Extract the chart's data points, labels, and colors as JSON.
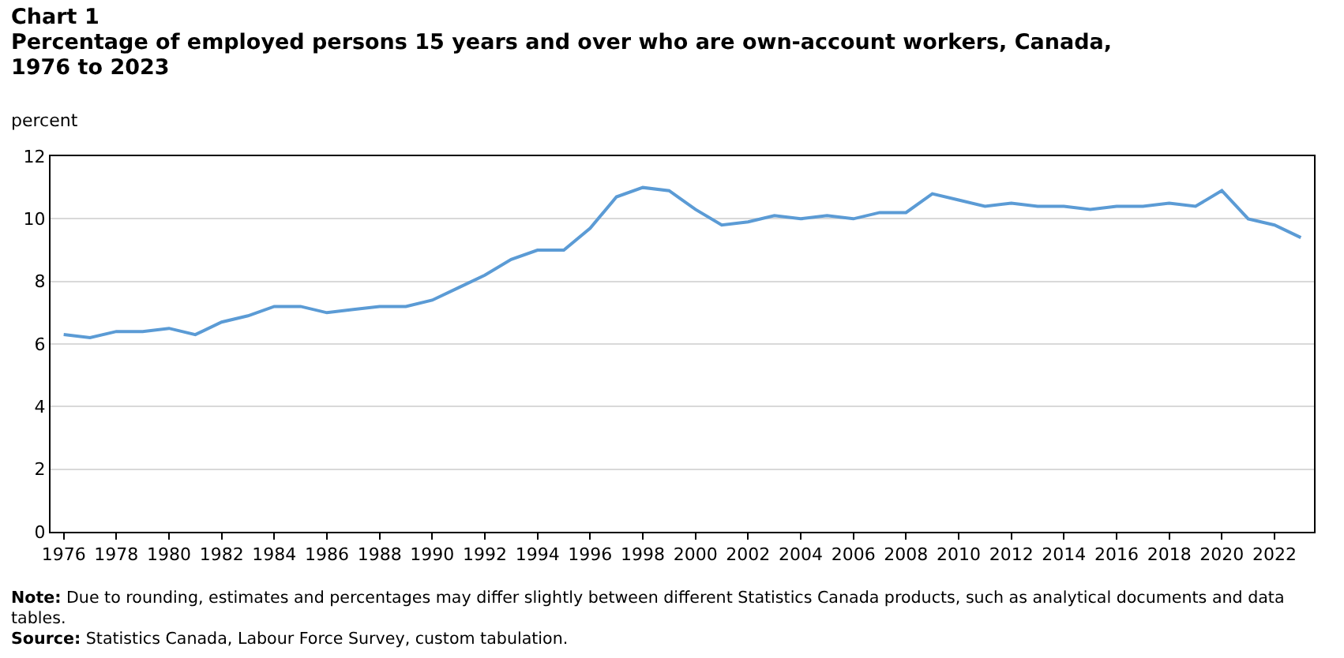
{
  "chart_data": {
    "type": "line",
    "title": "Chart 1",
    "subtitle": "Percentage of employed persons 15 years and over who are own-account workers, Canada, 1976 to 2023",
    "ylabel": "percent",
    "x": [
      1976,
      1977,
      1978,
      1979,
      1980,
      1981,
      1982,
      1983,
      1984,
      1985,
      1986,
      1987,
      1988,
      1989,
      1990,
      1991,
      1992,
      1993,
      1994,
      1995,
      1996,
      1997,
      1998,
      1999,
      2000,
      2001,
      2002,
      2003,
      2004,
      2005,
      2006,
      2007,
      2008,
      2009,
      2010,
      2011,
      2012,
      2013,
      2014,
      2015,
      2016,
      2017,
      2018,
      2019,
      2020,
      2021,
      2022,
      2023
    ],
    "series": [
      {
        "color": "#5b9bd5",
        "values": [
          6.3,
          6.2,
          6.4,
          6.4,
          6.5,
          6.3,
          6.7,
          6.9,
          7.2,
          7.2,
          7.0,
          7.1,
          7.2,
          7.2,
          7.4,
          7.8,
          8.2,
          8.7,
          9.0,
          9.0,
          9.7,
          10.7,
          11.0,
          10.9,
          10.3,
          9.8,
          9.9,
          10.1,
          10.0,
          10.1,
          10.0,
          10.2,
          10.2,
          10.8,
          10.6,
          10.4,
          10.5,
          10.4,
          10.4,
          10.3,
          10.4,
          10.4,
          10.5,
          10.4,
          10.9,
          10.0,
          9.8,
          9.4
        ]
      }
    ],
    "xlim": [
      1975.5,
      2023.5
    ],
    "xticks": [
      1976,
      1978,
      1980,
      1982,
      1984,
      1986,
      1988,
      1990,
      1992,
      1994,
      1996,
      1998,
      2000,
      2002,
      2004,
      2006,
      2008,
      2010,
      2012,
      2014,
      2016,
      2018,
      2020,
      2022
    ],
    "ylim": [
      0,
      12
    ],
    "yticks": [
      0,
      2,
      4,
      6,
      8,
      10,
      12
    ],
    "grid": "y",
    "marker": "none",
    "line_style": "solid",
    "annotations": [
      "Note: Due to rounding, estimates and percentages may differ slightly between different Statistics Canada products, such as analytical documents and data tables.",
      "Source: Statistics Canada, Labour Force Survey, custom tabulation."
    ]
  }
}
